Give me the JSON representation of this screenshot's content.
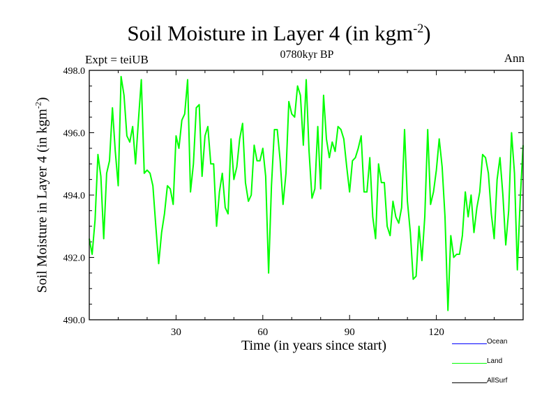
{
  "header": {
    "title_main": "Soil Moisture in Layer 4 (in kgm",
    "title_exp": "-2",
    "title_close": ")",
    "subtitle": "0780kyr BP",
    "expt": "Expt = teiUB",
    "season": "Ann"
  },
  "axes": {
    "ylabel_main": "Soil Moisture in Layer 4 (in kgm",
    "ylabel_exp": "-2",
    "ylabel_close": ")",
    "xlabel": "Time (in years since start)",
    "xticks": [
      "30",
      "60",
      "90",
      "120"
    ],
    "yticks": [
      "490.0",
      "492.0",
      "494.0",
      "496.0",
      "498.0"
    ]
  },
  "legend": {
    "items": [
      {
        "label": "Ocean",
        "color": "#0000ff"
      },
      {
        "label": "Land",
        "color": "#00ff00"
      },
      {
        "label": "AllSurf",
        "color": "#000000"
      }
    ]
  },
  "chart_data": {
    "type": "line",
    "title": "Soil Moisture in Layer 4 (in kgm-2)",
    "subtitle": "0780kyr BP",
    "xlabel": "Time (in years since start)",
    "ylabel": "Soil Moisture in Layer 4 (in kgm-2)",
    "xlim": [
      0,
      150
    ],
    "ylim": [
      490.0,
      498.0
    ],
    "xticks": [
      30,
      60,
      90,
      120
    ],
    "yticks": [
      490.0,
      492.0,
      494.0,
      496.0,
      498.0
    ],
    "grid": false,
    "legend_position": "bottom-right",
    "series": [
      {
        "name": "Land",
        "color": "#00ff00",
        "x": [
          0,
          1,
          2,
          3,
          4,
          5,
          6,
          7,
          8,
          9,
          10,
          11,
          12,
          13,
          14,
          15,
          16,
          17,
          18,
          19,
          20,
          21,
          22,
          23,
          24,
          25,
          26,
          27,
          28,
          29,
          30,
          31,
          32,
          33,
          34,
          35,
          36,
          37,
          38,
          39,
          40,
          41,
          42,
          43,
          44,
          45,
          46,
          47,
          48,
          49,
          50,
          51,
          52,
          53,
          54,
          55,
          56,
          57,
          58,
          59,
          60,
          61,
          62,
          63,
          64,
          65,
          66,
          67,
          68,
          69,
          70,
          71,
          72,
          73,
          74,
          75,
          76,
          77,
          78,
          79,
          80,
          81,
          82,
          83,
          84,
          85,
          86,
          87,
          88,
          89,
          90,
          91,
          92,
          93,
          94,
          95,
          96,
          97,
          98,
          99,
          100,
          101,
          102,
          103,
          104,
          105,
          106,
          107,
          108,
          109,
          110,
          111,
          112,
          113,
          114,
          115,
          116,
          117,
          118,
          119,
          120,
          121,
          122,
          123,
          124,
          125,
          126,
          127,
          128,
          129,
          130,
          131,
          132,
          133,
          134,
          135,
          136,
          137,
          138,
          139,
          140,
          141,
          142,
          143,
          144,
          145,
          146,
          147,
          148,
          149,
          150
        ],
        "values": [
          492.6,
          492.1,
          493.2,
          495.3,
          494.6,
          492.6,
          494.7,
          495.1,
          496.8,
          495.4,
          494.3,
          497.8,
          497.2,
          495.9,
          495.7,
          496.2,
          495.0,
          496.4,
          497.7,
          494.7,
          494.8,
          494.7,
          494.3,
          493.0,
          491.8,
          492.8,
          493.4,
          494.3,
          494.2,
          493.7,
          495.9,
          495.5,
          496.4,
          496.6,
          497.7,
          494.1,
          495.0,
          496.8,
          496.9,
          494.6,
          495.9,
          496.2,
          495.0,
          495.0,
          493.0,
          494.1,
          494.7,
          493.6,
          493.4,
          495.8,
          494.5,
          494.9,
          495.8,
          496.3,
          494.4,
          493.8,
          494.0,
          495.6,
          495.1,
          495.1,
          495.5,
          494.6,
          491.5,
          494.3,
          496.1,
          496.1,
          495.1,
          493.7,
          494.7,
          497.0,
          496.6,
          496.5,
          497.5,
          497.2,
          495.6,
          497.7,
          495.4,
          493.9,
          494.2,
          496.2,
          494.2,
          497.2,
          495.8,
          495.2,
          495.7,
          495.4,
          496.2,
          496.1,
          495.8,
          494.9,
          494.1,
          495.1,
          495.2,
          495.5,
          495.9,
          494.1,
          494.1,
          495.2,
          493.3,
          492.6,
          495.0,
          494.4,
          494.4,
          493.0,
          492.7,
          493.8,
          493.3,
          493.1,
          493.6,
          496.1,
          493.8,
          492.8,
          491.3,
          491.4,
          493.0,
          491.9,
          493.3,
          496.1,
          493.7,
          494.1,
          494.8,
          495.8,
          494.9,
          493.3,
          490.3,
          492.7,
          492.0,
          492.1,
          492.1,
          492.7,
          494.1,
          493.3,
          494.0,
          492.8,
          493.6,
          494.1,
          495.3,
          495.2,
          494.7,
          493.4,
          492.6,
          494.5,
          495.2,
          494.0,
          492.4,
          493.5,
          496.0,
          494.7,
          491.6,
          493.9,
          495.6
        ]
      }
    ]
  }
}
